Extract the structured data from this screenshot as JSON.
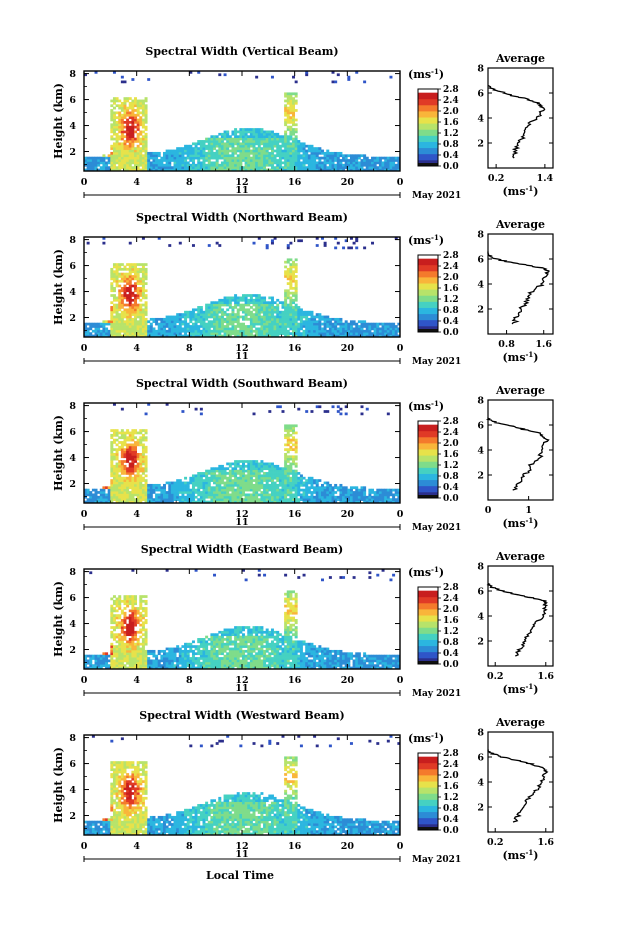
{
  "figure": {
    "x_axis_label": "Local Time",
    "date_center_label": "11",
    "date_right_label": "May 2021",
    "colorbar_unit": "(ms",
    "colorbar_unit_sup": "-1",
    "colorbar_unit_close": ")",
    "profile_title": "Average",
    "profile_unit": "(ms",
    "profile_unit_sup": "-1",
    "profile_unit_close": ")",
    "y_axis_label": "Height (km)"
  },
  "colors": {
    "colormap": [
      "#2b2f8c",
      "#2f55c8",
      "#2c8cd6",
      "#2bb6e0",
      "#45d1c2",
      "#7fdc8a",
      "#b7e36a",
      "#e7e24a",
      "#f9b53a",
      "#f47a2c",
      "#e03a26",
      "#c81e1e"
    ],
    "black_band": "#111111"
  },
  "chart_data": [
    {
      "type": "heatmap",
      "title": "Spectral Width (Vertical Beam)",
      "xlabel": "",
      "ylabel": "Height (km)",
      "x_ticks": [
        "0",
        "4",
        "8",
        "12",
        "16",
        "20",
        "0"
      ],
      "y_ticks": [
        "2",
        "4",
        "6",
        "8"
      ],
      "xlim": [
        0,
        24
      ],
      "ylim": [
        0.5,
        8.2
      ],
      "colorbar": {
        "label": "(ms-1)",
        "range": [
          0,
          2.8
        ],
        "ticks": [
          "2.8",
          "2.4",
          "2.0",
          "1.6",
          "1.2",
          "0.8",
          "0.4",
          "0.0"
        ]
      },
      "profile": {
        "title": "Average",
        "xlabel": "(ms-1)",
        "x_ticks": [
          "0.2",
          "1.4"
        ],
        "xlim": [
          0.0,
          1.6
        ],
        "ylim": [
          0,
          8
        ],
        "y_ticks": [
          "2",
          "4",
          "6",
          "8"
        ],
        "heights": [
          0.8,
          1.2,
          1.6,
          2.0,
          2.4,
          2.8,
          3.2,
          3.6,
          4.0,
          4.4,
          4.8,
          5.0,
          5.2,
          5.4,
          5.6,
          5.8,
          6.0,
          6.2,
          6.4,
          6.6
        ],
        "values": [
          0.6,
          0.65,
          0.7,
          0.75,
          0.85,
          0.9,
          0.95,
          1.05,
          1.2,
          1.3,
          1.35,
          1.3,
          1.25,
          1.05,
          0.85,
          0.6,
          0.4,
          0.2,
          0.05,
          0.0
        ]
      }
    },
    {
      "type": "heatmap",
      "title": "Spectral Width (Northward Beam)",
      "xlabel": "",
      "ylabel": "Height (km)",
      "x_ticks": [
        "0",
        "4",
        "8",
        "12",
        "16",
        "20",
        "0"
      ],
      "y_ticks": [
        "2",
        "4",
        "6",
        "8"
      ],
      "xlim": [
        0,
        24
      ],
      "ylim": [
        0.5,
        8.2
      ],
      "colorbar": {
        "label": "(ms-1)",
        "range": [
          0,
          2.8
        ],
        "ticks": [
          "2.8",
          "2.4",
          "2.0",
          "1.6",
          "1.2",
          "0.8",
          "0.4",
          "0.0"
        ]
      },
      "profile": {
        "title": "Average",
        "xlabel": "(ms-1)",
        "x_ticks": [
          "0.8",
          "1.6"
        ],
        "xlim": [
          0.4,
          1.8
        ],
        "ylim": [
          0,
          8
        ],
        "y_ticks": [
          "2",
          "4",
          "6",
          "8"
        ],
        "heights": [
          0.8,
          1.2,
          1.6,
          2.0,
          2.4,
          2.8,
          3.2,
          3.6,
          4.0,
          4.4,
          4.8,
          5.0,
          5.2,
          5.4,
          5.6,
          5.8,
          6.0,
          6.2,
          6.4,
          6.6
        ],
        "values": [
          0.95,
          1.0,
          1.05,
          1.1,
          1.2,
          1.25,
          1.3,
          1.45,
          1.55,
          1.6,
          1.65,
          1.7,
          1.65,
          1.4,
          1.1,
          0.8,
          0.6,
          0.45,
          0.4,
          0.4
        ]
      }
    },
    {
      "type": "heatmap",
      "title": "Spectral Width (Southward Beam)",
      "xlabel": "",
      "ylabel": "Height (km)",
      "x_ticks": [
        "0",
        "4",
        "8",
        "12",
        "16",
        "20",
        "0"
      ],
      "y_ticks": [
        "2",
        "4",
        "6",
        "8"
      ],
      "xlim": [
        0,
        24
      ],
      "ylim": [
        0.5,
        8.2
      ],
      "colorbar": {
        "label": "(ms-1)",
        "range": [
          0,
          2.8
        ],
        "ticks": [
          "2.8",
          "2.4",
          "2.0",
          "1.6",
          "1.2",
          "0.8",
          "0.4",
          "0.0"
        ]
      },
      "profile": {
        "title": "Average",
        "xlabel": "(ms-1)",
        "x_ticks": [
          "0",
          "1"
        ],
        "xlim": [
          0,
          1.6
        ],
        "ylim": [
          0,
          8
        ],
        "y_ticks": [
          "2",
          "4",
          "6",
          "8"
        ],
        "heights": [
          0.8,
          1.2,
          1.6,
          2.0,
          2.4,
          2.8,
          3.2,
          3.6,
          4.0,
          4.4,
          4.8,
          5.0,
          5.2,
          5.4,
          5.6,
          5.8,
          6.0,
          6.2,
          6.4,
          6.6
        ],
        "values": [
          0.65,
          0.7,
          0.8,
          0.9,
          1.0,
          1.05,
          1.2,
          1.3,
          1.35,
          1.4,
          1.45,
          1.4,
          1.35,
          1.2,
          0.95,
          0.7,
          0.45,
          0.2,
          0.05,
          0.0
        ]
      }
    },
    {
      "type": "heatmap",
      "title": "Spectral Width (Eastward Beam)",
      "xlabel": "",
      "ylabel": "Height (km)",
      "x_ticks": [
        "0",
        "4",
        "8",
        "12",
        "16",
        "20",
        "0"
      ],
      "y_ticks": [
        "2",
        "4",
        "6",
        "8"
      ],
      "xlim": [
        0,
        24
      ],
      "ylim": [
        0.5,
        8.2
      ],
      "colorbar": {
        "label": "(ms-1)",
        "range": [
          0,
          2.8
        ],
        "ticks": [
          "2.8",
          "2.4",
          "2.0",
          "1.6",
          "1.2",
          "0.8",
          "0.4",
          "0.0"
        ]
      },
      "profile": {
        "title": "Average",
        "xlabel": "(ms-1)",
        "x_ticks": [
          "0.2",
          "1.6"
        ],
        "xlim": [
          0.0,
          1.8
        ],
        "ylim": [
          0,
          8
        ],
        "y_ticks": [
          "2",
          "4",
          "6",
          "8"
        ],
        "heights": [
          0.8,
          1.2,
          1.6,
          2.0,
          2.4,
          2.8,
          3.2,
          3.6,
          4.0,
          4.4,
          4.8,
          5.0,
          5.2,
          5.4,
          5.6,
          5.8,
          6.0,
          6.2,
          6.4,
          6.6
        ],
        "values": [
          0.8,
          0.85,
          0.95,
          1.0,
          1.1,
          1.15,
          1.25,
          1.4,
          1.5,
          1.55,
          1.6,
          1.55,
          1.6,
          1.3,
          1.0,
          0.7,
          0.4,
          0.2,
          0.05,
          0.0
        ]
      }
    },
    {
      "type": "heatmap",
      "title": "Spectral Width (Westward Beam)",
      "xlabel": "Local Time",
      "ylabel": "Height (km)",
      "x_ticks": [
        "0",
        "4",
        "8",
        "12",
        "16",
        "20",
        "0"
      ],
      "y_ticks": [
        "2",
        "4",
        "6",
        "8"
      ],
      "xlim": [
        0,
        24
      ],
      "ylim": [
        0.5,
        8.2
      ],
      "colorbar": {
        "label": "(ms-1)",
        "range": [
          0,
          2.8
        ],
        "ticks": [
          "2.8",
          "2.4",
          "2.0",
          "1.6",
          "1.2",
          "0.8",
          "0.4",
          "0.0"
        ]
      },
      "profile": {
        "title": "Average",
        "xlabel": "(ms-1)",
        "x_ticks": [
          "0.2",
          "1.6"
        ],
        "xlim": [
          0.0,
          1.8
        ],
        "ylim": [
          0,
          8
        ],
        "y_ticks": [
          "2",
          "4",
          "6",
          "8"
        ],
        "heights": [
          0.8,
          1.2,
          1.6,
          2.0,
          2.4,
          2.8,
          3.2,
          3.6,
          4.0,
          4.4,
          4.8,
          5.0,
          5.2,
          5.4,
          5.6,
          5.8,
          6.0,
          6.2,
          6.4,
          6.6
        ],
        "values": [
          0.75,
          0.8,
          0.9,
          1.0,
          1.05,
          1.15,
          1.3,
          1.4,
          1.5,
          1.55,
          1.6,
          1.55,
          1.45,
          1.25,
          1.0,
          0.7,
          0.4,
          0.2,
          0.05,
          0.0
        ]
      }
    }
  ]
}
